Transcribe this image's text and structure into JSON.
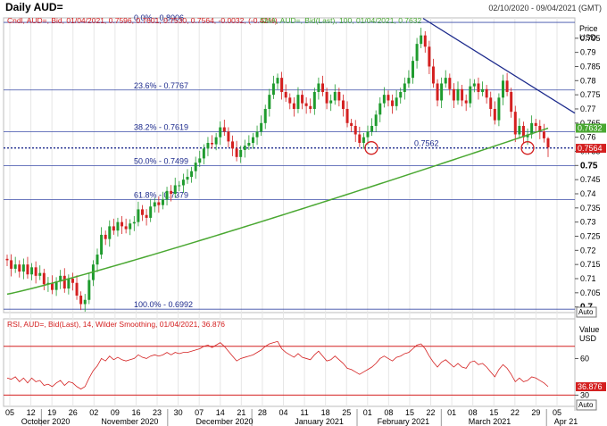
{
  "header": {
    "title": "Daily AUD=",
    "date_range": "02/10/2020 - 09/04/2021 (GMT)"
  },
  "legend": {
    "candle_info": "Cndl, AUD=, Bid, 01/04/2021, 0.7596, 0.7601, 0.7530, 0.7564, -0.0032, (-0.42%)",
    "sma_info": "SMA, AUD=, Bid(Last), 100, 01/04/2021, 0.7632",
    "rsi_info": "RSI, AUD=, Bid(Last), 14, Wilder Smoothing, 01/04/2021, 36.876"
  },
  "price_axis": {
    "title": "Price",
    "unit": "USD",
    "ticks": [
      "0.795",
      "0.79",
      "0.785",
      "0.78",
      "0.775",
      "0.77",
      "0.765",
      "0.76",
      "0.755",
      "0.75",
      "0.745",
      "0.74",
      "0.735",
      "0.73",
      "0.725",
      "0.72",
      "0.715",
      "0.71",
      "0.705",
      "0.7"
    ],
    "bold_ticks": [
      "0.75",
      "0.7"
    ],
    "auto_label": "Auto",
    "sma_badge": "0.7632",
    "close_badge": "0.7564"
  },
  "rsi_axis": {
    "title": "Value",
    "unit": "USD",
    "ticks": [
      "60",
      "30"
    ],
    "auto_label": "Auto",
    "rsi_badge": "36.876"
  },
  "fib_labels": [
    "0.0% - 0.8006",
    "23.6% - 0.7767",
    "38.2% - 0.7619",
    "50.0% - 0.7499",
    "61.8% - 0.7379",
    "100.0% - 0.6992"
  ],
  "support_label": "0.7562",
  "x_axis": {
    "days": [
      "05",
      "12",
      "19",
      "26",
      "02",
      "09",
      "16",
      "23",
      "30",
      "07",
      "14",
      "21",
      "28",
      "04",
      "11",
      "18",
      "25",
      "01",
      "08",
      "15",
      "22",
      "01",
      "08",
      "15",
      "22",
      "29",
      "05"
    ],
    "months": [
      "October 2020",
      "November 2020",
      "December 2020",
      "January 2021",
      "February 2021",
      "March 2021",
      "Apr 21"
    ]
  },
  "chart_data": {
    "type": "candlestick",
    "instrument": "AUD=",
    "period": "Daily",
    "ylim": [
      0.698,
      0.8022
    ],
    "fibonacci_levels": [
      {
        "label": "0.0%",
        "value": 0.8006
      },
      {
        "label": "23.6%",
        "value": 0.7767
      },
      {
        "label": "38.2%",
        "value": 0.7619
      },
      {
        "label": "50.0%",
        "value": 0.7499
      },
      {
        "label": "61.8%",
        "value": 0.7379
      },
      {
        "label": "100.0%",
        "value": 0.6992
      }
    ],
    "support_level": 0.7562,
    "last_candle": {
      "date": "01/04/2021",
      "open": 0.7596,
      "high": 0.7601,
      "low": 0.753,
      "close": 0.7564,
      "change": -0.0032,
      "change_pct": -0.42
    },
    "sma": {
      "period": 100,
      "last": 0.7632
    },
    "trendline": {
      "from_date": "24/02/2021",
      "from_value": 0.802,
      "to_date": "05/04/2021",
      "to_value": 0.7685
    },
    "closes": [
      0.7165,
      0.7135,
      0.715,
      0.7125,
      0.715,
      0.7115,
      0.714,
      0.711,
      0.712,
      0.708,
      0.7085,
      0.706,
      0.709,
      0.711,
      0.7065,
      0.71,
      0.7085,
      0.704,
      0.701,
      0.7025,
      0.7095,
      0.715,
      0.7185,
      0.7255,
      0.724,
      0.7285,
      0.727,
      0.73,
      0.7285,
      0.7275,
      0.7295,
      0.73,
      0.7345,
      0.7325,
      0.7315,
      0.7355,
      0.737,
      0.736,
      0.738,
      0.741,
      0.74,
      0.743,
      0.743,
      0.745,
      0.746,
      0.748,
      0.751,
      0.7525,
      0.756,
      0.758,
      0.7575,
      0.76,
      0.7635,
      0.762,
      0.7585,
      0.756,
      0.753,
      0.7555,
      0.757,
      0.758,
      0.76,
      0.762,
      0.765,
      0.77,
      0.775,
      0.779,
      0.781,
      0.776,
      0.774,
      0.772,
      0.77,
      0.775,
      0.772,
      0.771,
      0.77,
      0.776,
      0.779,
      0.776,
      0.772,
      0.773,
      0.776,
      0.773,
      0.77,
      0.765,
      0.764,
      0.761,
      0.758,
      0.76,
      0.762,
      0.764,
      0.768,
      0.772,
      0.775,
      0.773,
      0.771,
      0.774,
      0.776,
      0.779,
      0.781,
      0.787,
      0.793,
      0.796,
      0.792,
      0.785,
      0.779,
      0.773,
      0.779,
      0.781,
      0.777,
      0.773,
      0.777,
      0.773,
      0.772,
      0.778,
      0.779,
      0.776,
      0.777,
      0.774,
      0.77,
      0.766,
      0.774,
      0.78,
      0.776,
      0.769,
      0.761,
      0.764,
      0.76,
      0.761,
      0.765,
      0.764,
      0.762,
      0.7596,
      0.7564
    ],
    "sma_start": 0.7045,
    "rsi": {
      "levels": [
        70,
        30
      ],
      "ylim": [
        23,
        83
      ],
      "last": 36.876,
      "values": [
        44,
        43,
        45,
        41,
        44,
        40,
        44,
        41,
        42,
        38,
        39,
        37,
        40,
        42,
        38,
        41,
        40,
        37,
        35,
        37,
        44,
        50,
        54,
        60,
        58,
        62,
        59,
        61,
        59,
        58,
        59,
        60,
        63,
        61,
        60,
        62,
        63,
        62,
        63,
        65,
        63,
        65,
        64,
        65,
        65,
        66,
        67,
        68,
        70,
        71,
        69,
        71,
        73,
        70,
        66,
        62,
        58,
        60,
        61,
        62,
        63,
        65,
        67,
        70,
        72,
        73,
        74,
        68,
        65,
        63,
        61,
        64,
        61,
        60,
        59,
        63,
        66,
        62,
        58,
        59,
        62,
        59,
        56,
        52,
        51,
        49,
        47,
        49,
        51,
        53,
        56,
        60,
        62,
        60,
        58,
        61,
        62,
        64,
        65,
        68,
        71,
        72,
        68,
        62,
        57,
        53,
        57,
        59,
        56,
        53,
        56,
        53,
        52,
        57,
        58,
        55,
        56,
        53,
        49,
        45,
        51,
        55,
        52,
        47,
        41,
        44,
        41,
        42,
        45,
        44,
        42,
        40,
        37
      ]
    }
  }
}
